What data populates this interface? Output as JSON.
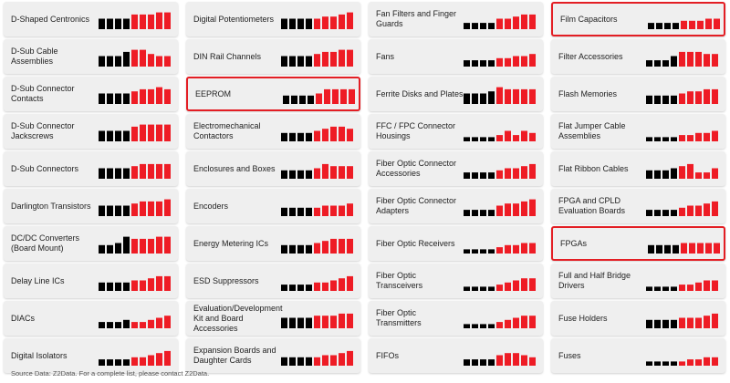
{
  "bar_colors": [
    "#000000",
    "#000000",
    "#000000",
    "#000000",
    "#ee1c25",
    "#ee1c25",
    "#ee1c25",
    "#ee1c25",
    "#ee1c25"
  ],
  "highlight_color": "#e31e24",
  "tiles": [
    {
      "label": "D-Shaped Centronics",
      "values": [
        5,
        5,
        5,
        5,
        7,
        7,
        7,
        8,
        8
      ]
    },
    {
      "label": "D-Sub Cable Assemblies",
      "values": [
        5,
        5,
        5,
        7,
        8,
        8,
        6,
        5,
        5
      ]
    },
    {
      "label": "D-Sub Connector Contacts",
      "values": [
        5,
        5,
        5,
        5,
        6,
        7,
        7,
        8,
        7
      ]
    },
    {
      "label": "D-Sub Connector Jackscrews",
      "values": [
        5,
        5,
        5,
        5,
        7,
        8,
        8,
        8,
        8
      ]
    },
    {
      "label": "D-Sub Connectors",
      "values": [
        5,
        5,
        5,
        5,
        6,
        7,
        7,
        7,
        7
      ]
    },
    {
      "label": "Darlington Transistors",
      "values": [
        5,
        5,
        5,
        5,
        6,
        7,
        7,
        7,
        8
      ]
    },
    {
      "label": "DC/DC Converters (Board Mount)",
      "values": [
        4,
        4,
        5,
        8,
        7,
        7,
        7,
        8,
        8
      ]
    },
    {
      "label": "Delay Line ICs",
      "values": [
        4,
        4,
        4,
        4,
        5,
        5,
        6,
        7,
        7
      ]
    },
    {
      "label": "DIACs",
      "values": [
        3,
        3,
        3,
        4,
        3,
        3,
        4,
        5,
        6
      ]
    },
    {
      "label": "Digital Isolators",
      "values": [
        3,
        3,
        3,
        3,
        4,
        4,
        5,
        6,
        7
      ]
    },
    {
      "label": "Digital Potentiometers",
      "values": [
        5,
        5,
        5,
        5,
        5,
        6,
        6,
        7,
        8
      ]
    },
    {
      "label": "DIN Rail Channels",
      "values": [
        5,
        5,
        5,
        5,
        6,
        7,
        7,
        8,
        8
      ]
    },
    {
      "label": "EEPROM",
      "values": [
        4,
        4,
        4,
        4,
        5,
        7,
        7,
        7,
        7
      ],
      "highlighted": true
    },
    {
      "label": "Electromechanical Contactors",
      "values": [
        4,
        4,
        4,
        4,
        5,
        6,
        7,
        7,
        6
      ]
    },
    {
      "label": "Enclosures and Boxes",
      "values": [
        4,
        4,
        4,
        4,
        5,
        7,
        6,
        6,
        6
      ]
    },
    {
      "label": "Encoders",
      "values": [
        4,
        4,
        4,
        4,
        4,
        5,
        5,
        5,
        6
      ]
    },
    {
      "label": "Energy Metering ICs",
      "values": [
        4,
        4,
        4,
        4,
        5,
        6,
        7,
        7,
        7
      ]
    },
    {
      "label": "ESD Suppressors",
      "values": [
        3,
        3,
        3,
        3,
        4,
        4,
        5,
        6,
        7
      ]
    },
    {
      "label": "Evaluation/Development Kit and Board Accessories",
      "values": [
        5,
        5,
        5,
        5,
        6,
        6,
        6,
        7,
        7
      ]
    },
    {
      "label": "Expansion Boards and Daughter Cards",
      "values": [
        4,
        4,
        4,
        4,
        4,
        5,
        5,
        6,
        7
      ]
    },
    {
      "label": "Fan Filters and Finger Guards",
      "values": [
        3,
        3,
        3,
        3,
        5,
        5,
        6,
        7,
        7
      ]
    },
    {
      "label": "Fans",
      "values": [
        3,
        3,
        3,
        3,
        4,
        4,
        5,
        5,
        6
      ]
    },
    {
      "label": "Ferrite Disks and Plates",
      "values": [
        5,
        5,
        5,
        6,
        8,
        7,
        7,
        7,
        7
      ]
    },
    {
      "label": "FFC / FPC Connector Housings",
      "values": [
        2,
        2,
        2,
        2,
        3,
        5,
        3,
        5,
        4
      ]
    },
    {
      "label": "Fiber Optic Connector Accessories",
      "values": [
        3,
        3,
        3,
        3,
        4,
        5,
        5,
        6,
        7
      ]
    },
    {
      "label": "Fiber Optic Connector Adapters",
      "values": [
        3,
        3,
        3,
        3,
        5,
        6,
        6,
        7,
        8
      ]
    },
    {
      "label": "Fiber Optic Receivers",
      "values": [
        2,
        2,
        2,
        2,
        3,
        4,
        4,
        5,
        5
      ]
    },
    {
      "label": "Fiber Optic Transceivers",
      "values": [
        2,
        2,
        2,
        2,
        3,
        4,
        5,
        6,
        6
      ]
    },
    {
      "label": "Fiber Optic Transmitters",
      "values": [
        2,
        2,
        2,
        2,
        3,
        4,
        5,
        6,
        6
      ]
    },
    {
      "label": "FIFOs",
      "values": [
        3,
        3,
        3,
        3,
        5,
        6,
        6,
        5,
        4
      ]
    },
    {
      "label": "Film Capacitors",
      "values": [
        3,
        3,
        3,
        3,
        4,
        4,
        4,
        5,
        5
      ],
      "highlighted": true
    },
    {
      "label": "Filter Accessories",
      "values": [
        3,
        3,
        3,
        5,
        7,
        7,
        7,
        6,
        6
      ]
    },
    {
      "label": "Flash Memories",
      "values": [
        4,
        4,
        4,
        4,
        5,
        6,
        6,
        7,
        7
      ]
    },
    {
      "label": "Flat Jumper Cable Assemblies",
      "values": [
        2,
        2,
        2,
        2,
        3,
        3,
        4,
        4,
        5
      ]
    },
    {
      "label": "Flat Ribbon Cables",
      "values": [
        4,
        4,
        4,
        5,
        6,
        7,
        3,
        3,
        5
      ]
    },
    {
      "label": "FPGA and CPLD Evaluation Boards",
      "values": [
        3,
        3,
        3,
        3,
        4,
        5,
        5,
        6,
        7
      ]
    },
    {
      "label": "FPGAs",
      "values": [
        4,
        4,
        4,
        4,
        5,
        5,
        5,
        5,
        5
      ],
      "highlighted": true
    },
    {
      "label": "Full and Half Bridge Drivers",
      "values": [
        2,
        2,
        2,
        2,
        3,
        3,
        4,
        5,
        5
      ]
    },
    {
      "label": "Fuse Holders",
      "values": [
        4,
        4,
        4,
        4,
        5,
        5,
        5,
        6,
        7
      ]
    },
    {
      "label": "Fuses",
      "values": [
        2,
        2,
        2,
        2,
        2,
        3,
        3,
        4,
        4
      ]
    }
  ],
  "footer": "Source Data: Z2Data. For a complete list, please contact Z2Data."
}
